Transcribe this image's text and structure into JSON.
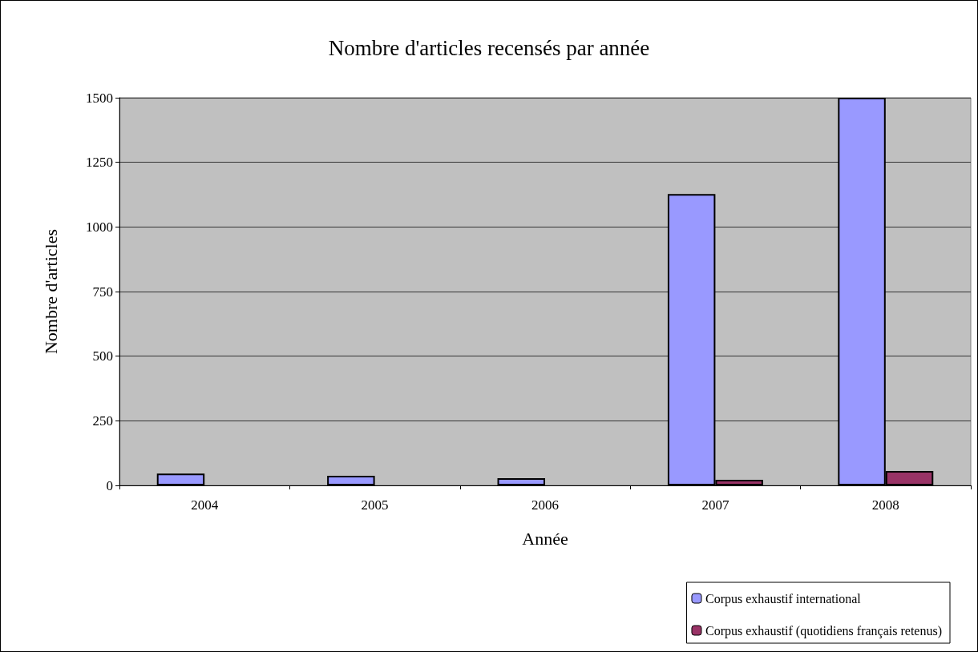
{
  "chart_data": {
    "type": "bar",
    "title": "Nombre d'articles recensés par année",
    "xlabel": "Année",
    "ylabel": "Nombre d'articles",
    "categories": [
      "2004",
      "2005",
      "2006",
      "2007",
      "2008"
    ],
    "series": [
      {
        "name": "Corpus exhaustif international",
        "color": "#9999ff",
        "values": [
          46,
          37,
          28,
          1127,
          1500
        ]
      },
      {
        "name": "Corpus exhaustif (quotidiens français retenus)",
        "color": "#993366",
        "values": [
          null,
          null,
          null,
          22,
          56
        ]
      }
    ],
    "ylim": [
      0,
      1500
    ],
    "yticks": [
      0,
      250,
      500,
      750,
      1000,
      1250,
      1500
    ],
    "grid": "y",
    "legend": "bottom right"
  }
}
